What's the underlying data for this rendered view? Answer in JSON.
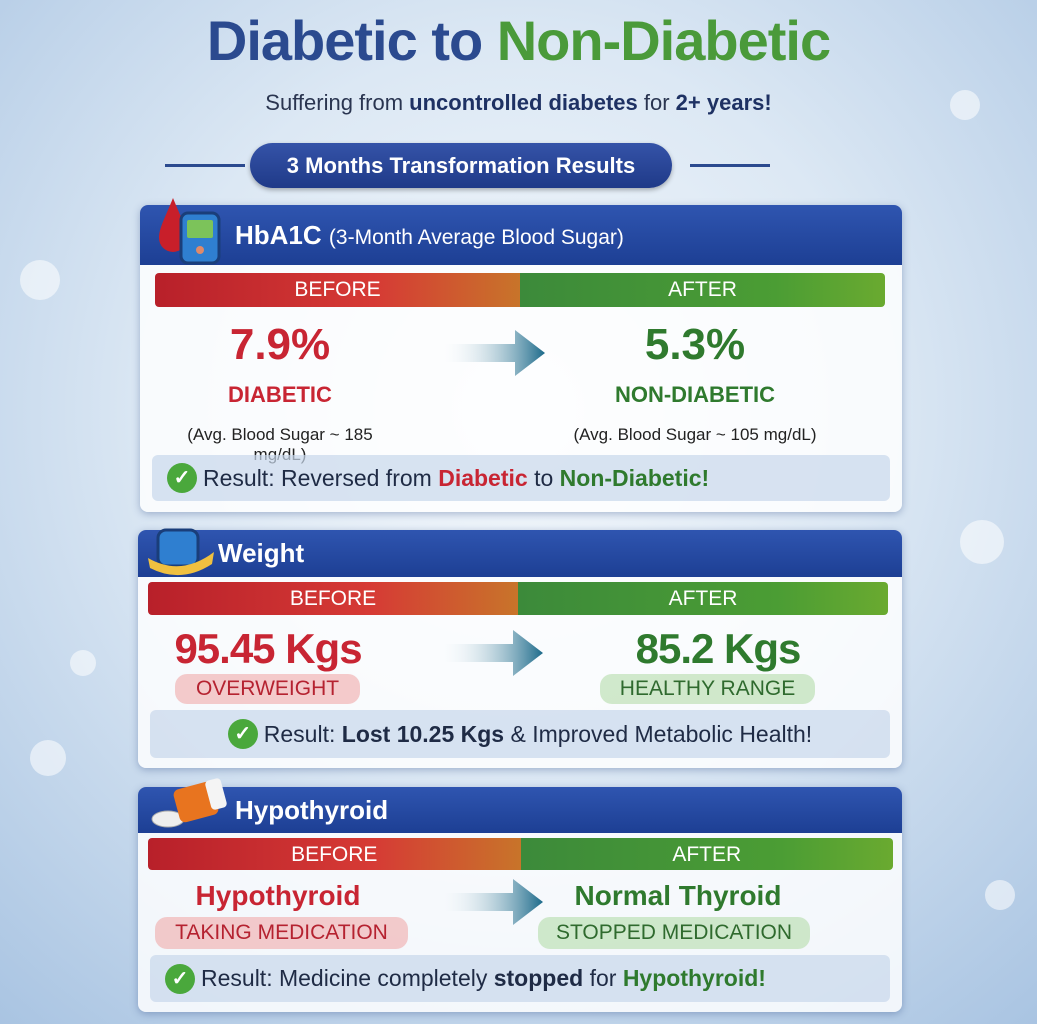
{
  "title": {
    "part1": "Diabetic to",
    "part2": "Non-Diabetic"
  },
  "subtitle": {
    "pre": "Suffering from ",
    "bold1": "uncontrolled diabetes",
    "mid": " for ",
    "bold2": "2+ years!"
  },
  "banner": "3 Months Transformation Results",
  "labels": {
    "before": "BEFORE",
    "after": "AFTER"
  },
  "hba1c": {
    "title": "HbA1C",
    "title_sub": "(3-Month Average Blood Sugar)",
    "before_value": "7.9%",
    "after_value": "5.3%",
    "before_status": "DIABETIC",
    "after_status": "NON-DIABETIC",
    "before_note": "(Avg. Blood Sugar ~ 185 mg/dL)",
    "after_note": "(Avg. Blood Sugar ~ 105 mg/dL)",
    "result_pre": "Result: Reversed from ",
    "result_red": "Diabetic",
    "result_mid": " to ",
    "result_green": "Non-Diabetic!"
  },
  "weight": {
    "title": "Weight",
    "before_value": "95.45 Kgs",
    "after_value": "85.2 Kgs",
    "before_status": "OVERWEIGHT",
    "after_status": "HEALTHY RANGE",
    "result_pre": "Result: ",
    "result_bold": "Lost 10.25 Kgs",
    "result_post": " & Improved Metabolic Health!"
  },
  "thyroid": {
    "title": "Hypothyroid",
    "before_value": "Hypothyroid",
    "after_value": "Normal Thyroid",
    "before_status": "TAKING MEDICATION",
    "after_status": "STOPPED MEDICATION",
    "result_pre": "Result: Medicine completely ",
    "result_bold": "stopped",
    "result_mid": " for ",
    "result_green": "Hypothyroid!"
  },
  "colors": {
    "blue": "#2b4a8f",
    "green": "#4a9a3a",
    "red": "#c82533"
  }
}
